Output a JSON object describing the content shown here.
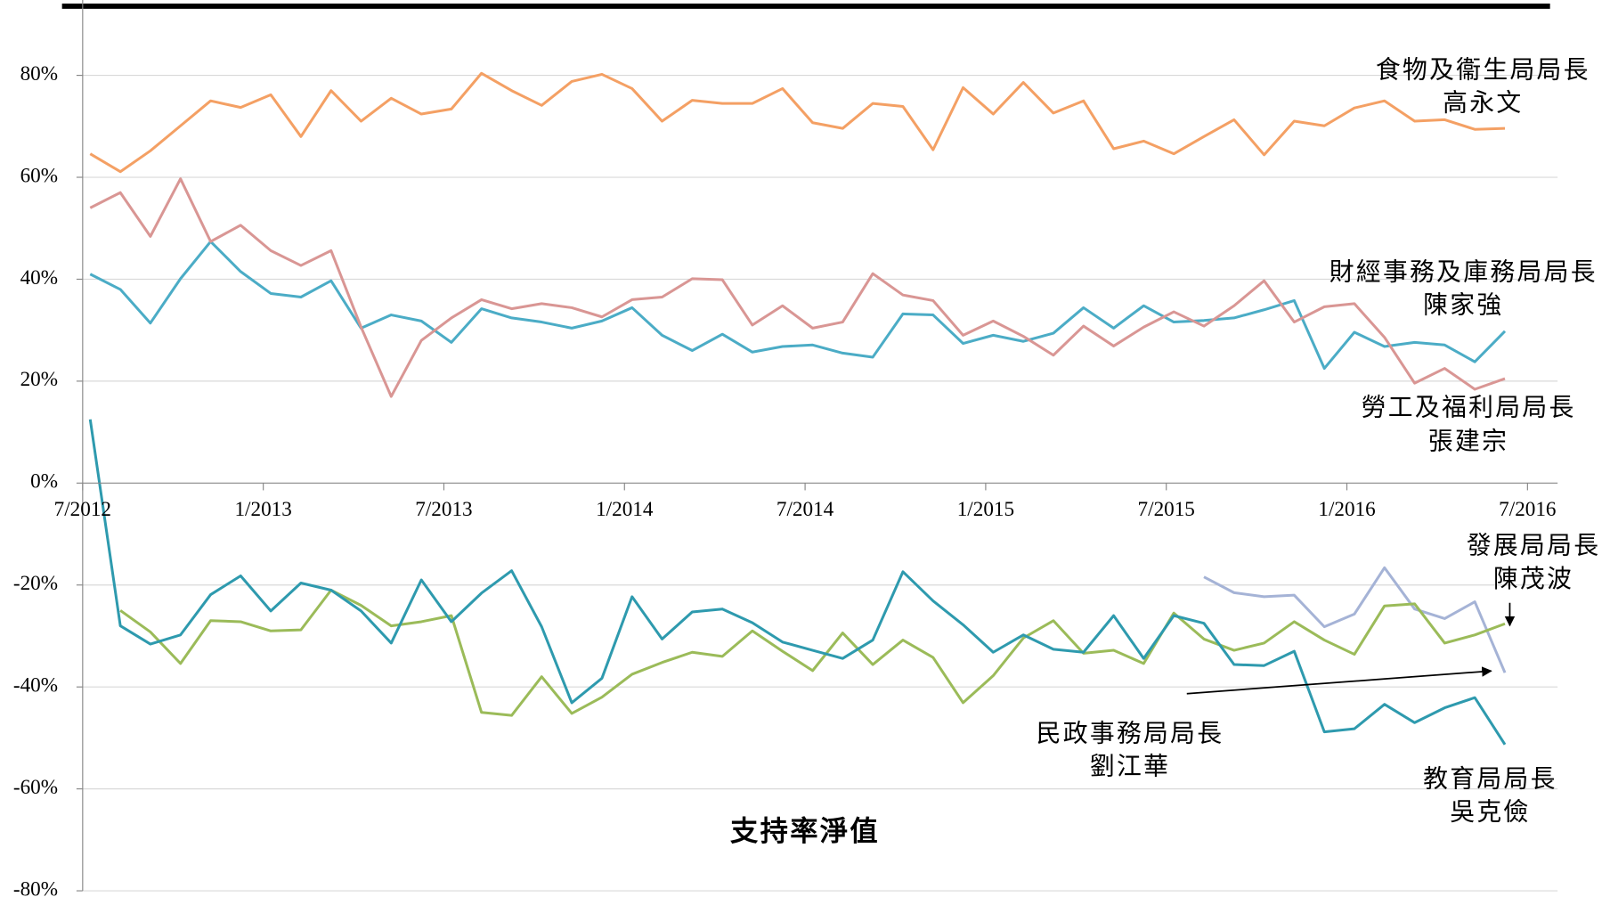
{
  "chart_data": {
    "type": "line",
    "title": "支持率淨值",
    "x": [
      0.25,
      1.25,
      2.25,
      3.25,
      4.25,
      5.25,
      6.25,
      7.25,
      8.25,
      9.25,
      10.25,
      11.25,
      12.25,
      13.25,
      14.25,
      15.25,
      16.25,
      17.25,
      18.25,
      19.25,
      20.25,
      21.25,
      22.25,
      23.25,
      24.25,
      25.25,
      26.25,
      27.25,
      28.25,
      29.25,
      30.25,
      31.25,
      32.25,
      33.25,
      34.25,
      35.25,
      36.25,
      37.25,
      38.25,
      39.25,
      40.25,
      41.25,
      42.25,
      43.25,
      44.25,
      45.25,
      46.25,
      47.25
    ],
    "xlim": [
      0,
      49
    ],
    "xticks": [
      {
        "value": 0,
        "label": "7/2012"
      },
      {
        "value": 6,
        "label": "1/2013"
      },
      {
        "value": 12,
        "label": "7/2013"
      },
      {
        "value": 18,
        "label": "1/2014"
      },
      {
        "value": 24,
        "label": "7/2014"
      },
      {
        "value": 30,
        "label": "1/2015"
      },
      {
        "value": 36,
        "label": "7/2015"
      },
      {
        "value": 42,
        "label": "1/2016"
      },
      {
        "value": 48,
        "label": "7/2016"
      }
    ],
    "ylim": [
      -80,
      90
    ],
    "yticks": [
      {
        "value": -80,
        "label": "-80%"
      },
      {
        "value": -60,
        "label": "-60%"
      },
      {
        "value": -40,
        "label": "-40%"
      },
      {
        "value": -20,
        "label": "-20%"
      },
      {
        "value": 0,
        "label": "0%"
      },
      {
        "value": 20,
        "label": "20%"
      },
      {
        "value": 40,
        "label": "40%"
      },
      {
        "value": 60,
        "label": "60%"
      },
      {
        "value": 80,
        "label": "80%"
      }
    ],
    "grid": true,
    "series": [
      {
        "name": "食物及衞生局局長",
        "person": "高永文",
        "color": "#f4a064",
        "values": [
          64.6,
          61.1,
          65.2,
          70.1,
          75,
          73.7,
          76.2,
          68,
          77,
          71,
          75.5,
          72.4,
          73.4,
          80.4,
          77,
          74.1,
          78.8,
          80.2,
          77.4,
          71,
          75.1,
          74.5,
          74.5,
          77.4,
          70.7,
          69.6,
          74.5,
          73.9,
          65.4,
          77.6,
          72.4,
          78.6,
          72.6,
          75,
          65.6,
          67.1,
          64.6,
          68,
          71.3,
          64.4,
          71,
          70.1,
          73.6,
          75,
          71,
          71.3,
          69.4,
          69.6
        ]
      },
      {
        "name": "財經事務及庫務局局長",
        "person": "陳家強",
        "color": "#4bacc6",
        "values": [
          41,
          38,
          31.4,
          40.1,
          47.4,
          41.5,
          37.2,
          36.5,
          39.7,
          30.4,
          33,
          31.8,
          27.6,
          34.2,
          32.4,
          31.6,
          30.4,
          31.8,
          34.4,
          29,
          26,
          29.2,
          25.7,
          26.8,
          27.1,
          25.5,
          24.7,
          33.2,
          33,
          27.4,
          29,
          27.8,
          29.4,
          34.4,
          30.4,
          34.8,
          31.6,
          31.9,
          32.4,
          34,
          35.8,
          22.5,
          29.6,
          26.8,
          27.6,
          27.1,
          23.8,
          29.8
        ]
      },
      {
        "name": "勞工及福利局局長",
        "person": "張建宗",
        "color": "#d99694",
        "values": [
          54,
          57,
          48.4,
          59.7,
          47.4,
          50.6,
          45.6,
          42.7,
          45.6,
          30.6,
          17,
          28,
          32.4,
          36,
          34.2,
          35.2,
          34.4,
          32.6,
          36,
          36.5,
          40.1,
          39.9,
          31,
          34.8,
          30.4,
          31.6,
          41.1,
          36.9,
          35.8,
          29,
          31.8,
          28.8,
          25.1,
          30.8,
          26.9,
          30.6,
          33.6,
          30.8,
          34.8,
          39.7,
          31.6,
          34.6,
          35.2,
          28.6,
          19.6,
          22.5,
          18.4,
          20.5
        ]
      },
      {
        "name": "發展局局長",
        "person": "陳茂波",
        "color": "#a5b3d6",
        "values": [
          null,
          null,
          null,
          null,
          null,
          null,
          null,
          null,
          null,
          null,
          null,
          null,
          null,
          null,
          null,
          null,
          null,
          null,
          null,
          null,
          null,
          null,
          null,
          null,
          null,
          null,
          null,
          null,
          null,
          null,
          null,
          null,
          null,
          null,
          null,
          null,
          null,
          -18.4,
          -21.5,
          -22.3,
          -22,
          -28.2,
          -25.7,
          -16.6,
          -24.7,
          -26.6,
          -23.3,
          -37.2
        ]
      },
      {
        "name": "民政事務局局長",
        "person": "劉江華",
        "color": "#9bbb59",
        "values": [
          null,
          -25,
          -29.2,
          -35.4,
          -27,
          -27.2,
          -29,
          -28.8,
          -21,
          -24,
          -28,
          -27.2,
          -26,
          -45,
          -45.6,
          -38,
          -45.2,
          -42,
          -37.5,
          -35.2,
          -33.2,
          -34,
          -29,
          -33,
          -36.8,
          -29.4,
          -35.6,
          -30.8,
          -34.2,
          -43.1,
          -37.8,
          -30.4,
          -27,
          -33.4,
          -32.8,
          -35.4,
          -25.5,
          -30.6,
          -32.8,
          -31.4,
          -27.2,
          -30.8,
          -33.6,
          -24.1,
          -23.7,
          -31.4,
          -29.8,
          -27.6
        ]
      },
      {
        "name": "教育局局長",
        "person": "吳克儉",
        "color": "#2e9aae",
        "values": [
          12.5,
          -28,
          -31.6,
          -29.8,
          -21.9,
          -18.2,
          -25.1,
          -19.6,
          -21,
          -25.1,
          -31.4,
          -19,
          -27.2,
          -21.6,
          -17.2,
          -28.2,
          -43.1,
          -38.3,
          -22.3,
          -30.6,
          -25.3,
          -24.7,
          -27.4,
          -31.2,
          -32.8,
          -34.4,
          -30.8,
          -17.4,
          -23.1,
          -27.8,
          -33.2,
          -29.8,
          -32.6,
          -33.2,
          -26,
          -34.4,
          -26,
          -27.5,
          -35.6,
          -35.8,
          -33,
          -48.8,
          -48.2,
          -43.4,
          -47,
          -44.1,
          -42.1,
          -51.3
        ]
      }
    ]
  }
}
